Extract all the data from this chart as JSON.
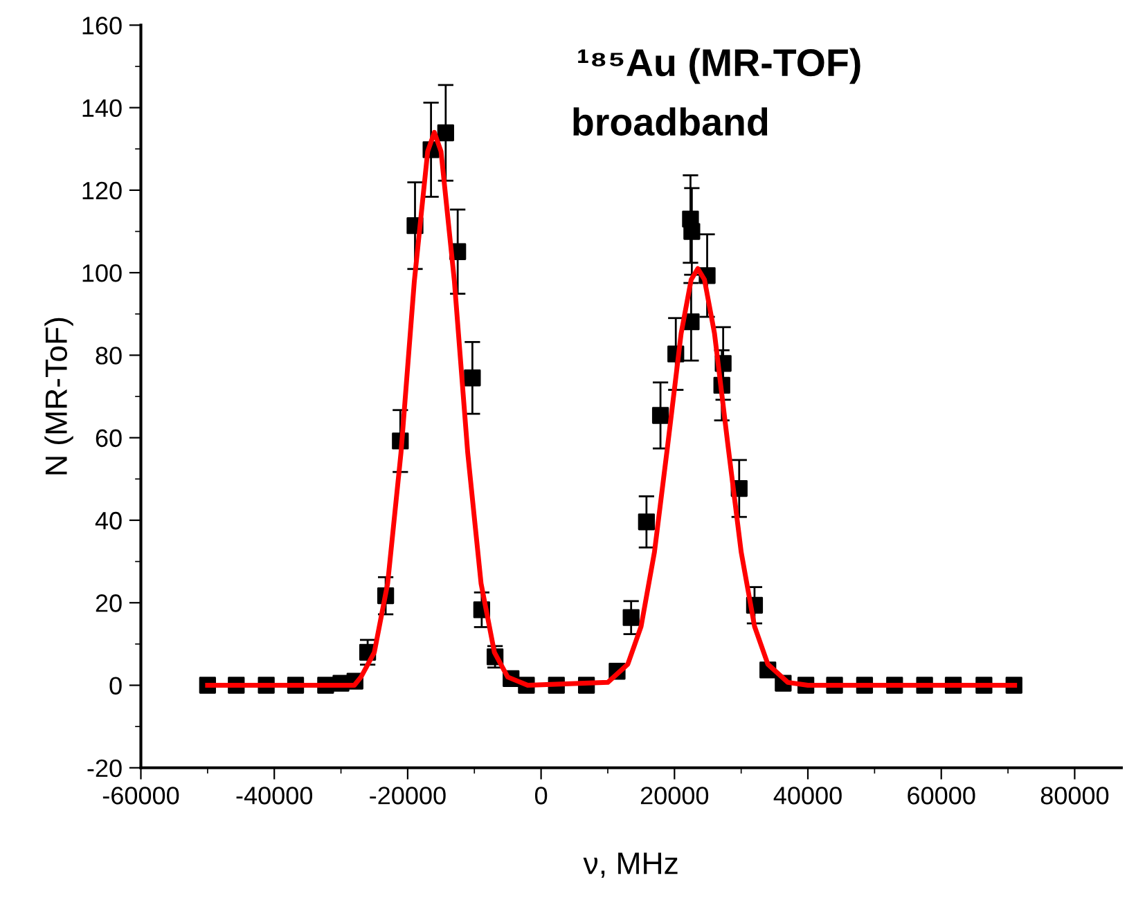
{
  "chart_data": {
    "type": "scatter",
    "title": "¹⁸⁵Au (MR-TOF)",
    "subtitle": "broadband",
    "xlabel": "ν, MHz",
    "ylabel": "N (MR-ToF)",
    "xlim": [
      -60000,
      87000
    ],
    "xticks": [
      -60000,
      -40000,
      -20000,
      0,
      20000,
      40000,
      60000,
      80000
    ],
    "ylim": [
      -20,
      160
    ],
    "yticks": [
      -20,
      0,
      20,
      40,
      60,
      80,
      100,
      120,
      140,
      160
    ],
    "grid": false,
    "legend": false,
    "series": [
      {
        "color": "#000000",
        "marker": "square",
        "x": [
          -50000,
          -45700,
          -41200,
          -36800,
          -32300,
          -30000,
          -27900,
          -26000,
          -23300,
          -21100,
          -18900,
          -16500,
          -14300,
          -12500,
          -10300,
          -8900,
          -6900,
          -4500,
          -2200,
          2300,
          6800,
          11400,
          13500,
          15800,
          17900,
          20200,
          22400,
          22600,
          22500,
          24900,
          27300,
          27100,
          29700,
          32000,
          34000,
          36300,
          39700,
          44000,
          48500,
          53000,
          57500,
          61800,
          66400,
          70900
        ],
        "values": [
          0,
          0,
          0,
          0,
          0,
          0.5,
          1,
          8,
          21.7,
          59.2,
          111.4,
          129.8,
          133.9,
          105.1,
          74.5,
          18.3,
          6.9,
          1.6,
          0,
          0,
          0,
          3.4,
          16.4,
          39.6,
          65.4,
          80.3,
          113,
          110,
          88.1,
          99.3,
          78,
          72.7,
          47.7,
          19.4,
          3.7,
          0.5,
          0,
          0,
          0,
          0,
          0,
          0,
          0,
          0
        ],
        "errors": [
          null,
          null,
          null,
          null,
          null,
          null,
          null,
          3,
          4.5,
          7.5,
          10.5,
          11.4,
          11.6,
          10.2,
          8.7,
          4.2,
          2.6,
          null,
          null,
          null,
          null,
          null,
          4,
          6.2,
          8,
          8.7,
          10.6,
          10.5,
          9.4,
          10,
          8.8,
          8.5,
          6.9,
          4.4,
          null,
          null,
          null,
          null,
          null,
          null,
          null,
          null,
          null,
          null
        ]
      },
      {
        "type": "line",
        "color": "#ff0000",
        "marker": "none",
        "line_style": "solid",
        "x": [
          -50000,
          -28000,
          -27000,
          -25000,
          -23000,
          -21000,
          -19000,
          -17000,
          -16000,
          -15000,
          -13000,
          -11000,
          -9000,
          -7000,
          -5000,
          -2000,
          10000,
          13000,
          15000,
          17000,
          19000,
          21000,
          22500,
          23500,
          24500,
          26000,
          28000,
          30000,
          32000,
          34000,
          37000,
          40000,
          71000
        ],
        "values": [
          0,
          0,
          2,
          8,
          24.7,
          56.4,
          98,
          129.4,
          134,
          129.4,
          98,
          56.4,
          24.7,
          8,
          2,
          0,
          0.7,
          5.1,
          14.3,
          32.3,
          58.4,
          85.3,
          98.3,
          101,
          98.3,
          85.3,
          58.4,
          32.3,
          14.3,
          5.1,
          0.7,
          0,
          0
        ]
      }
    ]
  }
}
